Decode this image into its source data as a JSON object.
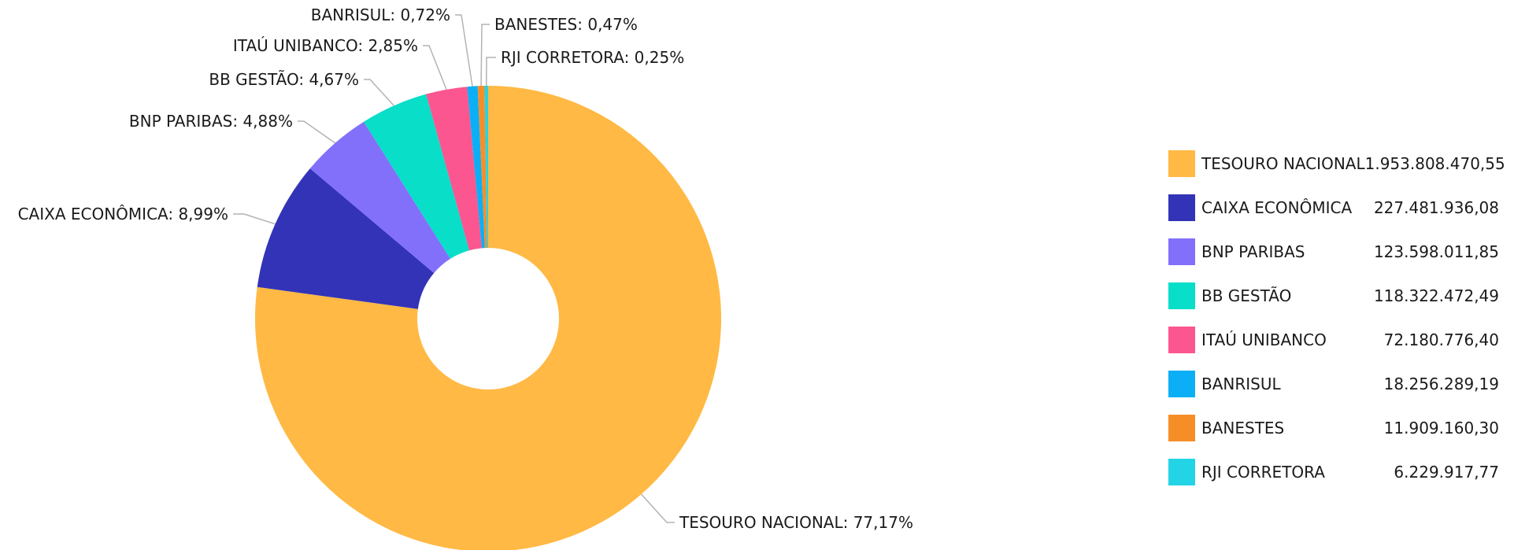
{
  "chart_data": {
    "type": "pie",
    "style": "donut",
    "legend": "right",
    "categories": [
      "TESOURO NACIONAL",
      "CAIXA ECONÔMICA",
      "BNP PARIBAS",
      "BB GESTÃO",
      "ITAÚ UNIBANCO",
      "BANRISUL",
      "BANESTES",
      "RJI CORRETORA"
    ],
    "values": [
      1953808470.55,
      227481936.08,
      123598011.85,
      118322472.49,
      72180776.4,
      18256289.19,
      11909160.3,
      6229917.77
    ],
    "value_labels": [
      "1.953.808.470,55",
      "227.481.936,08",
      "123.598.011,85",
      "118.322.472,49",
      "72.180.776,40",
      "18.256.289,19",
      "11.909.160,30",
      "6.229.917,77"
    ],
    "slice_labels": [
      "TESOURO NACIONAL: 77,17%",
      "CAIXA ECONÔMICA: 8,99%",
      "BNP PARIBAS: 4,88%",
      "BB GESTÃO: 4,67%",
      "ITAÚ UNIBANCO: 2,85%",
      "BANRISUL: 0,72%",
      "BANESTES: 0,47%",
      "RJI CORRETORA: 0,25%"
    ],
    "colors": [
      "#ffb944",
      "#3333b8",
      "#8270fb",
      "#08dec8",
      "#fb5690",
      "#0caff5",
      "#f68e28",
      "#23d4e6"
    ]
  }
}
